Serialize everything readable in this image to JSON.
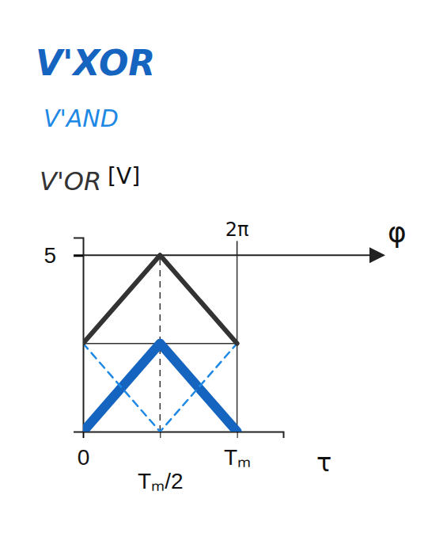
{
  "chart_data": {
    "type": "line",
    "x": [
      0,
      0.5,
      1
    ],
    "series": [
      {
        "name": "V'XOR",
        "color": "#1565c0",
        "values": [
          0,
          2.5,
          0
        ],
        "line_style": "solid"
      },
      {
        "name": "V'AND",
        "color": "#1e88e5",
        "values": [
          2.5,
          0,
          2.5
        ],
        "line_style": "dashed"
      },
      {
        "name": "V'OR",
        "color": "#333333",
        "values": [
          2.5,
          5,
          2.5
        ],
        "line_style": "solid"
      }
    ],
    "x_label": "τ",
    "y_label": "[V]",
    "xlim": [
      0,
      1.3
    ],
    "xticks": [
      0,
      {
        "value": 0.5,
        "label": "Tₘ/2"
      },
      {
        "value": 1,
        "label": "Tₘ"
      }
    ],
    "ylim": [
      0,
      5.5
    ],
    "yticks": [
      5
    ],
    "phase_axis": {
      "label": "φ",
      "ticks": [
        {
          "value": 1,
          "label": "2π"
        }
      ]
    }
  }
}
